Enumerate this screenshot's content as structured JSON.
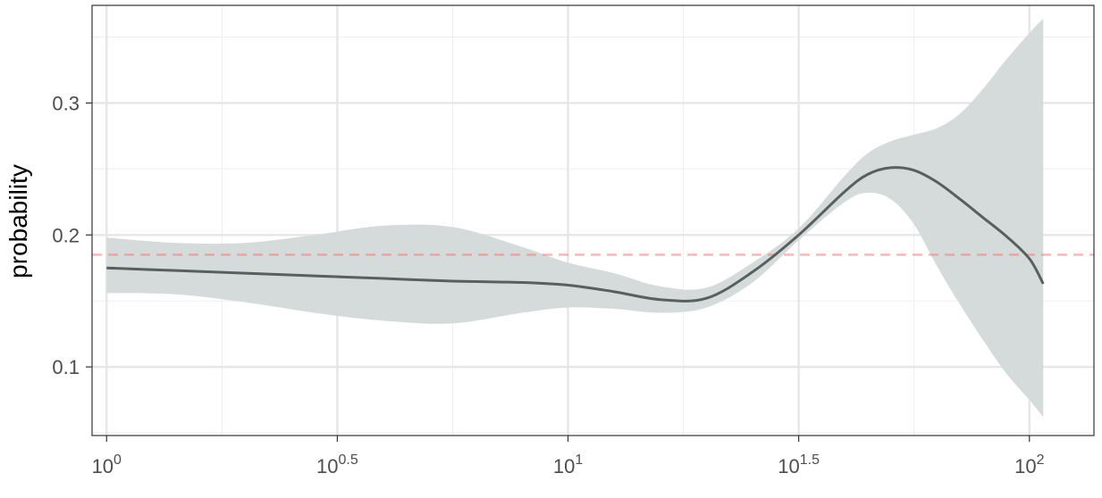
{
  "chart_data": {
    "type": "line",
    "title": "",
    "xlabel": "",
    "ylabel": "probability",
    "x_scale": "log10",
    "xlim": [
      0.93,
      138
    ],
    "ylim": [
      0.048,
      0.374
    ],
    "x_ticks": [
      {
        "value": 1,
        "base": "10",
        "exp": "0"
      },
      {
        "value": 3.1623,
        "base": "10",
        "exp": "0.5"
      },
      {
        "value": 10,
        "base": "10",
        "exp": "1"
      },
      {
        "value": 31.623,
        "base": "10",
        "exp": "1.5"
      },
      {
        "value": 100,
        "base": "10",
        "exp": "2"
      }
    ],
    "x_minor_ticks": [
      1.7783,
      5.6234,
      17.783,
      56.234
    ],
    "y_ticks": [
      {
        "value": 0.1,
        "label": "0.1"
      },
      {
        "value": 0.2,
        "label": "0.2"
      },
      {
        "value": 0.3,
        "label": "0.3"
      }
    ],
    "y_minor_ticks": [
      0.05,
      0.15,
      0.25,
      0.35
    ],
    "reference_line": {
      "y": 0.185,
      "style": "dashed",
      "color": "#f8766d"
    },
    "grid": true,
    "colors": {
      "line": "#595f5f",
      "ribbon": "#d5dbdb",
      "panel_border": "#333333",
      "grid_major": "#e6e6e6",
      "grid_minor": "#f0f0f0"
    },
    "series": [
      {
        "x": [
          1,
          1.4125,
          1.9953,
          2.8184,
          3.9811,
          5.6234,
          7.9433,
          10,
          12.589,
          15.849,
          19.953,
          25.119,
          31.623,
          39.811,
          44.668,
          50.119,
          56.234,
          63.096,
          70.795,
          79.433,
          89.125,
          100,
          107.15
        ],
        "y": [
          0.175,
          0.173,
          0.171,
          0.169,
          0.167,
          0.165,
          0.164,
          0.162,
          0.157,
          0.151,
          0.152,
          0.172,
          0.2,
          0.233,
          0.246,
          0.251,
          0.249,
          0.24,
          0.227,
          0.213,
          0.199,
          0.182,
          0.163
        ],
        "lower": [
          0.156,
          0.155,
          0.149,
          0.141,
          0.135,
          0.133,
          0.141,
          0.145,
          0.144,
          0.141,
          0.145,
          0.164,
          0.196,
          0.225,
          0.232,
          0.227,
          0.208,
          0.176,
          0.147,
          0.12,
          0.095,
          0.075,
          0.062
        ],
        "upper": [
          0.198,
          0.194,
          0.194,
          0.2,
          0.207,
          0.206,
          0.191,
          0.179,
          0.171,
          0.161,
          0.16,
          0.179,
          0.205,
          0.245,
          0.262,
          0.271,
          0.276,
          0.281,
          0.292,
          0.311,
          0.333,
          0.353,
          0.364
        ]
      }
    ]
  }
}
